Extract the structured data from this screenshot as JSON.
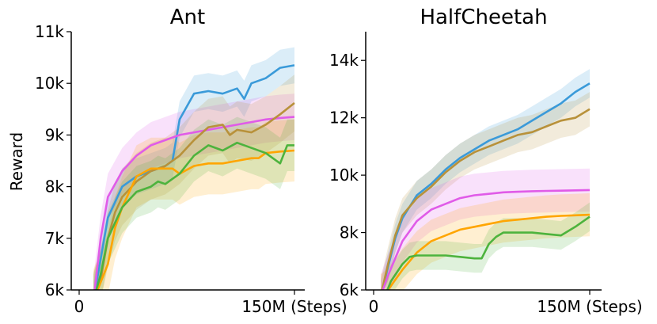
{
  "chart_data": [
    {
      "type": "line",
      "title": "Ant",
      "xlabel": "",
      "ylabel": "Reward",
      "xlim": [
        0,
        150
      ],
      "ylim": [
        6000,
        11000
      ],
      "x_tick_labels": [
        "0",
        "150M (Steps)"
      ],
      "y_tick_labels": [
        "6k",
        "7k",
        "8k",
        "9k",
        "10k",
        "11k"
      ],
      "y_ticks": [
        6000,
        7000,
        8000,
        9000,
        10000,
        11000
      ],
      "series": [
        {
          "name": "blue",
          "color": "#3a9ad9",
          "x": [
            10,
            15,
            20,
            30,
            40,
            50,
            60,
            65,
            70,
            80,
            90,
            100,
            110,
            115,
            120,
            130,
            140,
            150
          ],
          "y": [
            5800,
            6600,
            7400,
            8000,
            8200,
            8300,
            8400,
            8500,
            9300,
            9800,
            9850,
            9800,
            9900,
            9700,
            10000,
            10100,
            10300,
            10350
          ],
          "band": 350
        },
        {
          "name": "magenta",
          "color": "#e05be8",
          "x": [
            10,
            15,
            20,
            30,
            40,
            50,
            60,
            70,
            80,
            90,
            100,
            110,
            120,
            130,
            140,
            150
          ],
          "y": [
            5800,
            7000,
            7800,
            8300,
            8600,
            8800,
            8900,
            9000,
            9050,
            9100,
            9150,
            9200,
            9250,
            9300,
            9330,
            9350
          ],
          "band": 450
        },
        {
          "name": "gold",
          "color": "#b8913a",
          "x": [
            10,
            15,
            20,
            25,
            30,
            40,
            50,
            60,
            70,
            80,
            90,
            100,
            105,
            110,
            120,
            130,
            140,
            150
          ],
          "y": [
            5800,
            6200,
            7000,
            7500,
            7800,
            8100,
            8300,
            8400,
            8600,
            8900,
            9150,
            9200,
            9000,
            9100,
            9050,
            9200,
            9400,
            9620
          ],
          "band": 550
        },
        {
          "name": "orange",
          "color": "#ffa500",
          "x": [
            10,
            20,
            25,
            30,
            40,
            50,
            60,
            65,
            70,
            80,
            90,
            100,
            110,
            120,
            125,
            130,
            140,
            150
          ],
          "y": [
            5800,
            6500,
            7200,
            7600,
            8200,
            8350,
            8350,
            8350,
            8250,
            8400,
            8450,
            8450,
            8500,
            8550,
            8550,
            8650,
            8680,
            8700
          ],
          "band": 600
        },
        {
          "name": "green",
          "color": "#4db33d",
          "x": [
            10,
            15,
            20,
            25,
            30,
            40,
            50,
            55,
            60,
            70,
            80,
            90,
            100,
            110,
            120,
            130,
            140,
            145,
            150
          ],
          "y": [
            5800,
            6300,
            7000,
            7300,
            7600,
            7900,
            8000,
            8100,
            8050,
            8250,
            8600,
            8800,
            8700,
            8850,
            8750,
            8650,
            8450,
            8800,
            8800
          ],
          "band": 500
        }
      ]
    },
    {
      "type": "line",
      "title": "HalfCheetah",
      "xlabel": "",
      "ylabel": "",
      "xlim": [
        0,
        150
      ],
      "ylim": [
        6000,
        15000
      ],
      "x_tick_labels": [
        "0",
        "150M (Steps)"
      ],
      "y_tick_labels": [
        "6k",
        "8k",
        "10k",
        "12k",
        "14k"
      ],
      "y_ticks": [
        6000,
        8000,
        10000,
        12000,
        14000
      ],
      "series": [
        {
          "name": "blue",
          "color": "#3a9ad9",
          "x": [
            5,
            10,
            15,
            20,
            30,
            40,
            50,
            60,
            70,
            80,
            90,
            100,
            110,
            120,
            130,
            140,
            150
          ],
          "y": [
            5800,
            6800,
            7800,
            8500,
            9300,
            9700,
            10200,
            10600,
            10900,
            11200,
            11400,
            11600,
            11900,
            12200,
            12500,
            12900,
            13200
          ],
          "band": 500
        },
        {
          "name": "gold",
          "color": "#b8913a",
          "x": [
            5,
            10,
            15,
            20,
            30,
            40,
            50,
            60,
            70,
            80,
            90,
            100,
            110,
            120,
            130,
            140,
            150
          ],
          "y": [
            5800,
            6900,
            7900,
            8600,
            9200,
            9600,
            10100,
            10500,
            10800,
            11000,
            11200,
            11400,
            11500,
            11700,
            11900,
            12000,
            12300
          ],
          "band": 600
        },
        {
          "name": "magenta",
          "color": "#e05be8",
          "x": [
            5,
            10,
            20,
            30,
            40,
            50,
            60,
            70,
            80,
            90,
            100,
            110,
            120,
            130,
            140,
            150
          ],
          "y": [
            5800,
            6500,
            7700,
            8400,
            8800,
            9000,
            9200,
            9300,
            9350,
            9400,
            9420,
            9440,
            9450,
            9460,
            9470,
            9480
          ],
          "band": 750
        },
        {
          "name": "orange",
          "color": "#ffa500",
          "x": [
            5,
            10,
            20,
            30,
            40,
            50,
            60,
            70,
            80,
            90,
            100,
            110,
            120,
            130,
            140,
            150
          ],
          "y": [
            5800,
            6000,
            6700,
            7300,
            7700,
            7900,
            8100,
            8200,
            8300,
            8400,
            8450,
            8500,
            8550,
            8580,
            8600,
            8620
          ],
          "band": 750
        },
        {
          "name": "green",
          "color": "#4db33d",
          "x": [
            8,
            12,
            20,
            25,
            30,
            40,
            50,
            60,
            70,
            75,
            80,
            85,
            90,
            100,
            110,
            120,
            130,
            140,
            150
          ],
          "y": [
            5800,
            6300,
            6900,
            7150,
            7200,
            7200,
            7200,
            7150,
            7100,
            7100,
            7600,
            7850,
            8000,
            8000,
            8000,
            7950,
            7900,
            8200,
            8550
          ],
          "band": 500
        }
      ]
    }
  ]
}
